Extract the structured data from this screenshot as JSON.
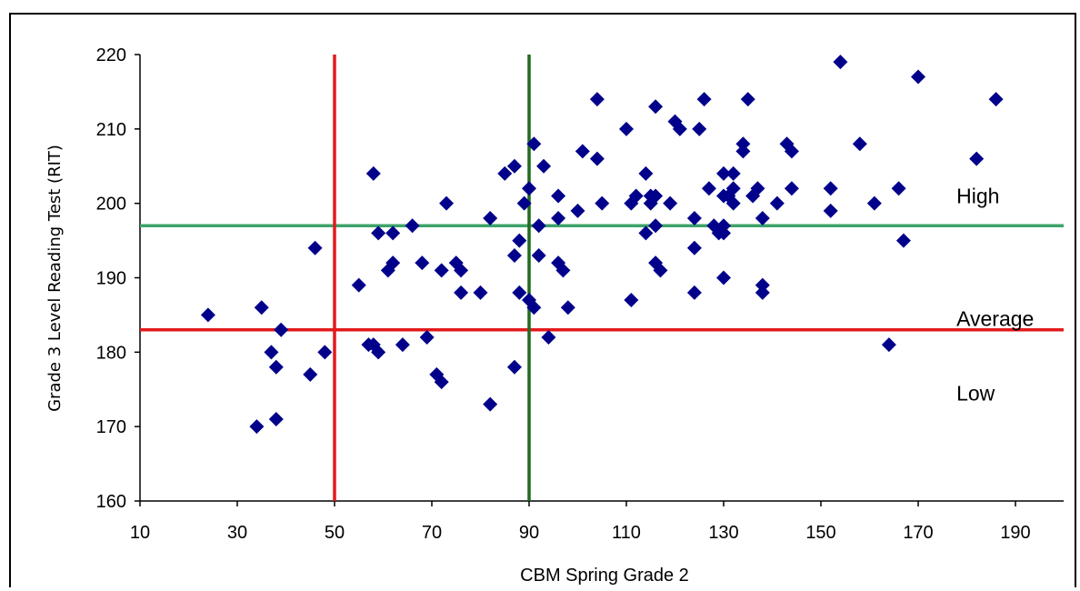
{
  "chart_data": {
    "type": "scatter",
    "title": "",
    "xlabel": "CBM Spring Grade 2",
    "ylabel": "Grade 3 Level Reading Test (RIT)",
    "xlim": [
      10,
      200
    ],
    "ylim": [
      160,
      220
    ],
    "xticks": [
      "10",
      "30",
      "50",
      "70",
      "90",
      "110",
      "130",
      "150",
      "170",
      "190"
    ],
    "yticks": [
      "160",
      "170",
      "180",
      "190",
      "200",
      "210",
      "220"
    ],
    "grid": false,
    "marker_color": "#00008B",
    "reference_lines": {
      "vertical": [
        {
          "x": 50,
          "color": "#E41A1C"
        },
        {
          "x": 90,
          "color": "#1E6B1E"
        }
      ],
      "horizontal": [
        {
          "y": 197,
          "color": "#3EA36A"
        },
        {
          "y": 183,
          "color": "#E41A1C"
        }
      ]
    },
    "annotations": [
      {
        "text": "High",
        "x": 176,
        "y": 201
      },
      {
        "text": "Average",
        "x": 176,
        "y": 184.5
      },
      {
        "text": "Low",
        "x": 176,
        "y": 174.5
      }
    ],
    "series": [
      {
        "points": [
          [
            24,
            185
          ],
          [
            34,
            170
          ],
          [
            35,
            186
          ],
          [
            37,
            180
          ],
          [
            38,
            178
          ],
          [
            38,
            171
          ],
          [
            39,
            183
          ],
          [
            45,
            177
          ],
          [
            46,
            194
          ],
          [
            48,
            180
          ],
          [
            55,
            189
          ],
          [
            57,
            181
          ],
          [
            58,
            204
          ],
          [
            58,
            181
          ],
          [
            59,
            180
          ],
          [
            59,
            196
          ],
          [
            61,
            191
          ],
          [
            62,
            196
          ],
          [
            62,
            192
          ],
          [
            64,
            181
          ],
          [
            66,
            197
          ],
          [
            68,
            192
          ],
          [
            69,
            182
          ],
          [
            71,
            177
          ],
          [
            72,
            191
          ],
          [
            72,
            176
          ],
          [
            73,
            200
          ],
          [
            75,
            192
          ],
          [
            76,
            188
          ],
          [
            76,
            191
          ],
          [
            80,
            188
          ],
          [
            82,
            198
          ],
          [
            82,
            173
          ],
          [
            85,
            204
          ],
          [
            87,
            193
          ],
          [
            87,
            205
          ],
          [
            87,
            178
          ],
          [
            88,
            188
          ],
          [
            88,
            195
          ],
          [
            89,
            200
          ],
          [
            90,
            187
          ],
          [
            90,
            202
          ],
          [
            91,
            186
          ],
          [
            91,
            208
          ],
          [
            92,
            197
          ],
          [
            92,
            193
          ],
          [
            93,
            205
          ],
          [
            94,
            182
          ],
          [
            96,
            192
          ],
          [
            96,
            198
          ],
          [
            96,
            201
          ],
          [
            97,
            191
          ],
          [
            98,
            186
          ],
          [
            100,
            199
          ],
          [
            101,
            207
          ],
          [
            104,
            214
          ],
          [
            104,
            206
          ],
          [
            105,
            200
          ],
          [
            110,
            210
          ],
          [
            111,
            200
          ],
          [
            111,
            187
          ],
          [
            112,
            201
          ],
          [
            114,
            204
          ],
          [
            114,
            196
          ],
          [
            115,
            201
          ],
          [
            115,
            200
          ],
          [
            116,
            213
          ],
          [
            116,
            201
          ],
          [
            116,
            197
          ],
          [
            116,
            192
          ],
          [
            117,
            191
          ],
          [
            119,
            200
          ],
          [
            120,
            211
          ],
          [
            121,
            210
          ],
          [
            124,
            198
          ],
          [
            124,
            194
          ],
          [
            124,
            188
          ],
          [
            125,
            210
          ],
          [
            126,
            214
          ],
          [
            127,
            202
          ],
          [
            128,
            197
          ],
          [
            129,
            196
          ],
          [
            130,
            204
          ],
          [
            130,
            201
          ],
          [
            130,
            197
          ],
          [
            130,
            196
          ],
          [
            130,
            190
          ],
          [
            131,
            201
          ],
          [
            132,
            204
          ],
          [
            132,
            202
          ],
          [
            132,
            200
          ],
          [
            134,
            208
          ],
          [
            134,
            207
          ],
          [
            135,
            214
          ],
          [
            136,
            201
          ],
          [
            137,
            202
          ],
          [
            138,
            198
          ],
          [
            138,
            189
          ],
          [
            138,
            188
          ],
          [
            141,
            200
          ],
          [
            143,
            208
          ],
          [
            144,
            207
          ],
          [
            144,
            202
          ],
          [
            152,
            202
          ],
          [
            152,
            199
          ],
          [
            154,
            219
          ],
          [
            158,
            208
          ],
          [
            161,
            200
          ],
          [
            164,
            181
          ],
          [
            166,
            202
          ],
          [
            167,
            195
          ],
          [
            170,
            217
          ],
          [
            182,
            206
          ],
          [
            186,
            214
          ]
        ]
      }
    ]
  }
}
